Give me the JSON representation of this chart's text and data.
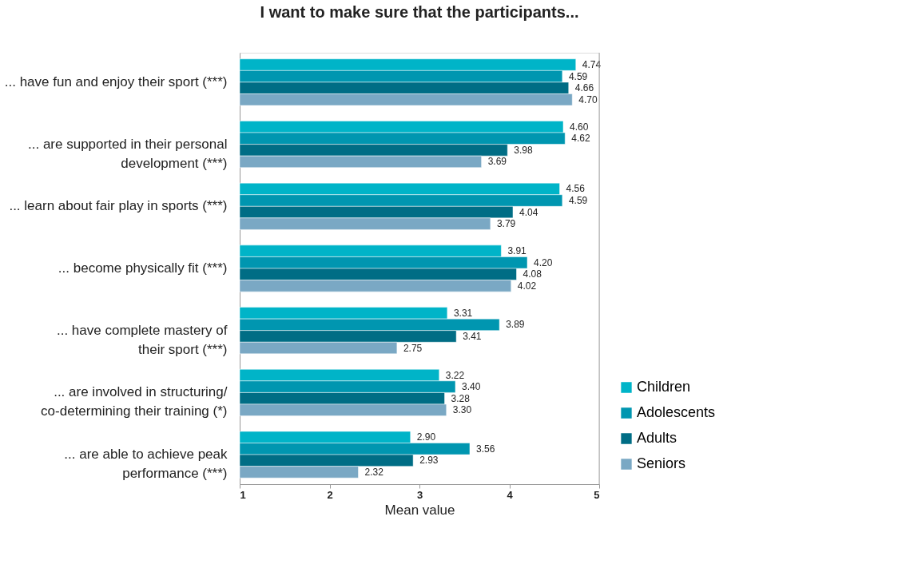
{
  "chart_data": {
    "type": "bar",
    "orientation": "horizontal",
    "title": "I want to make sure that the participants...",
    "xlabel": "Mean value",
    "categories": [
      "... have fun and enjoy their sport (***)",
      "... are supported in their personal\ndevelopment (***)",
      "... learn about fair play in sports (***)",
      "... become physically fit (***)",
      "... have complete mastery of\ntheir sport (***)",
      "... are involved in structuring/\nco-determining their training  (*)",
      "... are able to achieve peak\nperformance (***)"
    ],
    "series": [
      {
        "name": "Children",
        "color": "#00b4c8",
        "values": [
          4.74,
          4.6,
          4.56,
          3.91,
          3.31,
          3.22,
          2.9
        ],
        "value_labels": [
          "4.74",
          "4.60",
          "4.56",
          "3.91",
          "3.31",
          "3.22",
          "2.90"
        ]
      },
      {
        "name": "Adolescents",
        "color": "#0096b0",
        "values": [
          4.59,
          4.62,
          4.59,
          4.2,
          3.89,
          3.4,
          3.56
        ],
        "value_labels": [
          "4.59",
          "4.62",
          "4.59",
          "4.20",
          "3.89",
          "3.40",
          "3.56"
        ]
      },
      {
        "name": "Adults",
        "color": "#006d85",
        "values": [
          4.66,
          3.98,
          4.04,
          4.08,
          3.41,
          3.28,
          2.93
        ],
        "value_labels": [
          "4.66",
          "3.98",
          "4.04",
          "4.08",
          "3.41",
          "3.28",
          "2.93"
        ]
      },
      {
        "name": "Seniors",
        "color": "#7aa8c4",
        "values": [
          4.7,
          3.69,
          3.79,
          4.02,
          2.75,
          3.3,
          2.32
        ],
        "value_labels": [
          "4.70",
          "3.69",
          "3.79",
          "4.02",
          "2.75",
          "3.30",
          "2.32"
        ]
      }
    ],
    "xlim": [
      1,
      5
    ],
    "xticks": [
      1,
      2,
      3,
      4,
      5
    ],
    "grid": false,
    "legend": "bottom right"
  }
}
